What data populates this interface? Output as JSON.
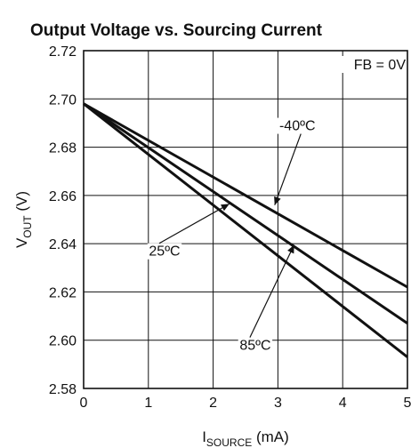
{
  "chart_data": {
    "type": "line",
    "title": "Output Voltage vs. Sourcing Current",
    "xlabel": {
      "main": "I",
      "sub": "SOURCE",
      "unit": " (mA)"
    },
    "ylabel": {
      "main": "V",
      "sub": "OUT",
      "unit": " (V)"
    },
    "xlim": [
      0,
      5
    ],
    "ylim": [
      2.58,
      2.72
    ],
    "xticks": [
      0,
      1,
      2,
      3,
      4,
      5
    ],
    "yticks": [
      2.58,
      2.6,
      2.62,
      2.64,
      2.66,
      2.68,
      2.7,
      2.72
    ],
    "xtick_labels": [
      "0",
      "1",
      "2",
      "3",
      "4",
      "5"
    ],
    "ytick_labels": [
      "2.58",
      "2.60",
      "2.62",
      "2.64",
      "2.66",
      "2.68",
      "2.70",
      "2.72"
    ],
    "grid": true,
    "condition": "FB = 0V",
    "series": [
      {
        "name": "-40ºC",
        "x": [
          0,
          5
        ],
        "y": [
          2.698,
          2.622
        ],
        "label_at": [
          3.3,
          2.687
        ],
        "arrow_to": [
          2.95,
          2.656
        ]
      },
      {
        "name": "25ºC",
        "x": [
          0,
          5
        ],
        "y": [
          2.698,
          2.607
        ],
        "label_at": [
          1.25,
          2.635
        ],
        "arrow_to": [
          2.25,
          2.6565
        ]
      },
      {
        "name": "85ºC",
        "x": [
          0,
          5
        ],
        "y": [
          2.698,
          2.593
        ],
        "label_at": [
          2.65,
          2.596
        ],
        "arrow_to": [
          3.25,
          2.6395
        ]
      }
    ]
  }
}
